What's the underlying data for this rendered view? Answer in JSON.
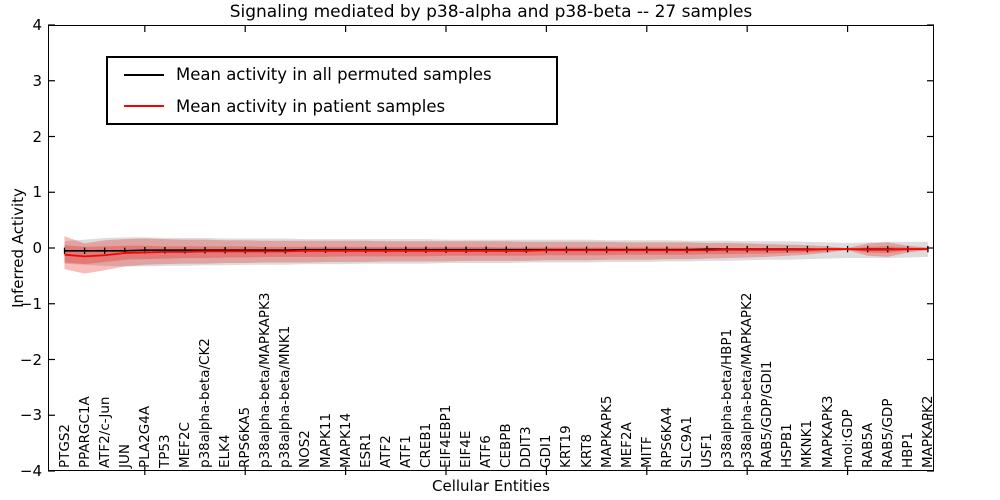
{
  "title": "Signaling mediated by p38-alpha and p38-beta -- 27 samples",
  "axes": {
    "ylabel": "Inferred Activity",
    "xlabel": "Cellular Entities",
    "yticks": [
      4,
      3,
      2,
      1,
      0,
      -1,
      -2,
      -3,
      -4
    ],
    "ylim": [
      -4,
      4
    ],
    "grid": false
  },
  "legend": {
    "position": "upper left",
    "items": [
      {
        "label": "Mean activity in all permuted samples",
        "color": "#000000"
      },
      {
        "label": "Mean activity in patient samples",
        "color": "#ff0000"
      }
    ]
  },
  "chart_data": {
    "type": "line",
    "title": "Signaling mediated by p38-alpha and p38-beta -- 27 samples",
    "xlabel": "Cellular Entities",
    "ylabel": "Inferred Activity",
    "ylim": [
      -4,
      4
    ],
    "grid": false,
    "legend_position": "upper left",
    "categories": [
      "PTGS2",
      "PPARGC1A",
      "ATF2/c-Jun",
      "JUN",
      "PLA2G4A",
      "TP53",
      "MEF2C",
      "p38alpha-beta/CK2",
      "ELK4",
      "RPS6KA5",
      "p38alpha-beta/MAPKAPK3",
      "p38alpha-beta/MNK1",
      "NOS2",
      "MAPK11",
      "MAPK14",
      "ESR1",
      "ATF2",
      "ATF1",
      "CREB1",
      "EIF4EBP1",
      "EIF4E",
      "ATF6",
      "CEBPB",
      "DDIT3",
      "GDI1",
      "KRT19",
      "KRT8",
      "MAPKAPK5",
      "MEF2A",
      "MITF",
      "RPS6KA4",
      "SLC9A1",
      "USF1",
      "p38alpha-beta/HBP1",
      "p38alpha-beta/MAPKAPK2",
      "RAB5/GDP/GDI1",
      "HSPB1",
      "MKNK1",
      "MAPKAPK3",
      "mol:GDP",
      "RAB5A",
      "RAB5/GDP",
      "HBP1",
      "MAPKAPK2"
    ],
    "major_tick_indices": [
      4,
      9,
      14,
      19,
      24,
      29,
      34,
      39
    ],
    "series": [
      {
        "name": "Mean activity in all permuted samples",
        "color": "#000000",
        "marker": "vertical-tick",
        "values": [
          -0.05,
          -0.05,
          -0.05,
          -0.05,
          -0.04,
          -0.04,
          -0.04,
          -0.04,
          -0.04,
          -0.04,
          -0.04,
          -0.04,
          -0.03,
          -0.03,
          -0.03,
          -0.03,
          -0.03,
          -0.03,
          -0.03,
          -0.03,
          -0.03,
          -0.03,
          -0.03,
          -0.03,
          -0.03,
          -0.03,
          -0.03,
          -0.03,
          -0.03,
          -0.03,
          -0.03,
          -0.03,
          -0.02,
          -0.02,
          -0.02,
          -0.02,
          -0.02,
          -0.02,
          -0.02,
          -0.02,
          -0.02,
          -0.02,
          -0.02,
          -0.02
        ]
      },
      {
        "name": "Mean activity in patient samples",
        "color": "#ff0000",
        "marker": "none",
        "values": [
          -0.12,
          -0.15,
          -0.13,
          -0.09,
          -0.08,
          -0.07,
          -0.07,
          -0.06,
          -0.06,
          -0.06,
          -0.06,
          -0.06,
          -0.05,
          -0.05,
          -0.05,
          -0.05,
          -0.05,
          -0.05,
          -0.05,
          -0.05,
          -0.05,
          -0.05,
          -0.05,
          -0.05,
          -0.04,
          -0.04,
          -0.04,
          -0.04,
          -0.04,
          -0.04,
          -0.04,
          -0.04,
          -0.04,
          -0.03,
          -0.03,
          -0.03,
          -0.03,
          -0.03,
          -0.02,
          -0.02,
          -0.03,
          -0.03,
          -0.02,
          -0.02
        ]
      }
    ],
    "bands": [
      {
        "name": "permuted-samples-std",
        "color": "#808080",
        "opacity": 0.28,
        "hi": [
          0.12,
          0.15,
          0.18,
          0.19,
          0.19,
          0.18,
          0.18,
          0.18,
          0.17,
          0.17,
          0.17,
          0.17,
          0.16,
          0.16,
          0.16,
          0.16,
          0.16,
          0.16,
          0.16,
          0.15,
          0.15,
          0.15,
          0.15,
          0.15,
          0.15,
          0.15,
          0.15,
          0.14,
          0.14,
          0.14,
          0.14,
          0.13,
          0.13,
          0.13,
          0.12,
          0.12,
          0.12,
          0.11,
          0.1,
          0.09,
          0.1,
          0.11,
          0.11,
          0.11
        ],
        "lo": [
          -0.28,
          -0.3,
          -0.32,
          -0.33,
          -0.33,
          -0.32,
          -0.32,
          -0.31,
          -0.31,
          -0.3,
          -0.3,
          -0.3,
          -0.29,
          -0.29,
          -0.29,
          -0.28,
          -0.28,
          -0.28,
          -0.28,
          -0.27,
          -0.27,
          -0.27,
          -0.27,
          -0.26,
          -0.26,
          -0.26,
          -0.26,
          -0.25,
          -0.25,
          -0.25,
          -0.24,
          -0.24,
          -0.23,
          -0.23,
          -0.22,
          -0.21,
          -0.21,
          -0.2,
          -0.19,
          -0.18,
          -0.18,
          -0.18,
          -0.17,
          -0.16
        ]
      },
      {
        "name": "patient-samples-std-outer",
        "color": "#e8201c",
        "opacity": 0.3,
        "hi": [
          0.21,
          0.08,
          0.14,
          0.16,
          0.17,
          0.16,
          0.15,
          0.15,
          0.14,
          0.14,
          0.13,
          0.13,
          0.13,
          0.13,
          0.13,
          0.13,
          0.12,
          0.12,
          0.12,
          0.12,
          0.12,
          0.12,
          0.12,
          0.11,
          0.11,
          0.11,
          0.11,
          0.11,
          0.1,
          0.1,
          0.1,
          0.1,
          0.09,
          0.09,
          0.08,
          0.07,
          0.06,
          0.05,
          0.03,
          0.0,
          0.08,
          0.1,
          0.04,
          0.01
        ],
        "lo": [
          -0.38,
          -0.46,
          -0.4,
          -0.33,
          -0.3,
          -0.29,
          -0.28,
          -0.28,
          -0.27,
          -0.27,
          -0.26,
          -0.26,
          -0.26,
          -0.25,
          -0.25,
          -0.25,
          -0.24,
          -0.24,
          -0.24,
          -0.24,
          -0.23,
          -0.23,
          -0.23,
          -0.23,
          -0.22,
          -0.22,
          -0.22,
          -0.21,
          -0.21,
          -0.21,
          -0.2,
          -0.2,
          -0.19,
          -0.18,
          -0.17,
          -0.16,
          -0.14,
          -0.12,
          -0.08,
          -0.04,
          -0.14,
          -0.16,
          -0.08,
          -0.04
        ]
      },
      {
        "name": "patient-samples-std-inner",
        "color": "#e8201c",
        "opacity": 0.3,
        "hi": [
          0.05,
          0.02,
          0.03,
          0.04,
          0.04,
          0.03,
          0.03,
          0.03,
          0.03,
          0.03,
          0.02,
          0.02,
          0.02,
          0.02,
          0.02,
          0.02,
          0.02,
          0.02,
          0.02,
          0.02,
          0.02,
          0.02,
          0.01,
          0.01,
          0.01,
          0.01,
          0.01,
          0.01,
          0.01,
          0.01,
          0.01,
          0.01,
          0.01,
          0.0,
          0.0,
          0.0,
          0.0,
          -0.01,
          -0.01,
          -0.01,
          0.02,
          0.03,
          0.01,
          0.0
        ],
        "lo": [
          -0.26,
          -0.29,
          -0.25,
          -0.21,
          -0.2,
          -0.19,
          -0.18,
          -0.18,
          -0.17,
          -0.17,
          -0.16,
          -0.16,
          -0.16,
          -0.16,
          -0.15,
          -0.15,
          -0.15,
          -0.15,
          -0.15,
          -0.14,
          -0.14,
          -0.14,
          -0.14,
          -0.14,
          -0.13,
          -0.13,
          -0.13,
          -0.13,
          -0.12,
          -0.12,
          -0.12,
          -0.12,
          -0.11,
          -0.11,
          -0.1,
          -0.1,
          -0.09,
          -0.08,
          -0.06,
          -0.03,
          -0.08,
          -0.09,
          -0.05,
          -0.03
        ]
      }
    ]
  }
}
